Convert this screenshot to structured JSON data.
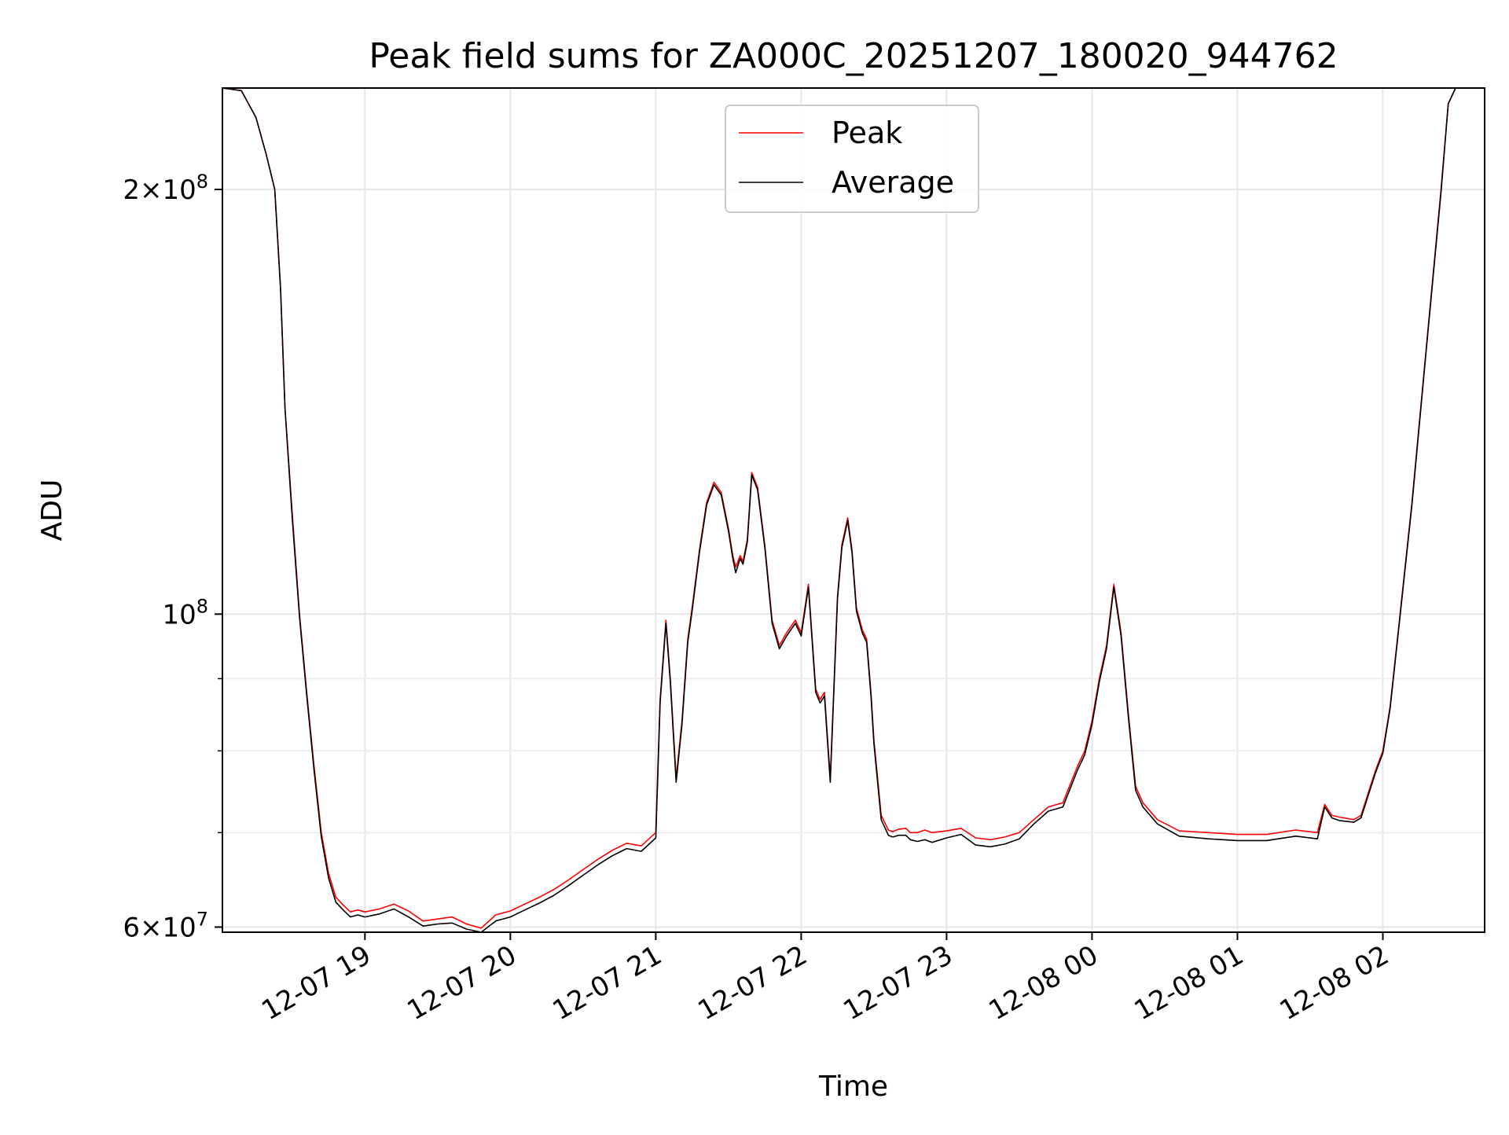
{
  "chart_data": {
    "type": "line",
    "title": "Peak field sums for ZA000C_20251207_180020_944762",
    "xlabel": "Time",
    "ylabel": "ADU",
    "yscale": "log",
    "xlim": [
      -0.98,
      7.7
    ],
    "ylim": [
      59500000,
      236000000
    ],
    "grid": true,
    "legend_position": "upper-center",
    "x_units": "hours after 12-07 19:00",
    "xticks": [
      {
        "value": 0,
        "label": "12-07 19"
      },
      {
        "value": 1,
        "label": "12-07 20"
      },
      {
        "value": 2,
        "label": "12-07 21"
      },
      {
        "value": 3,
        "label": "12-07 22"
      },
      {
        "value": 4,
        "label": "12-07 23"
      },
      {
        "value": 5,
        "label": "12-08 00"
      },
      {
        "value": 6,
        "label": "12-08 01"
      },
      {
        "value": 7,
        "label": "12-08 02"
      }
    ],
    "yticks_major": [
      {
        "value": 60000000,
        "label_base": "6×10",
        "label_exp": "7"
      },
      {
        "value": 100000000,
        "label_base": "10",
        "label_exp": "8"
      },
      {
        "value": 200000000,
        "label_base": "2×10",
        "label_exp": "8"
      }
    ],
    "yticks_minor": [
      70000000,
      80000000,
      90000000
    ],
    "series": [
      {
        "name": "Peak",
        "color": "#ff0000",
        "x": [
          -0.98,
          -0.85,
          -0.75,
          -0.68,
          -0.62,
          -0.58,
          -0.55,
          -0.5,
          -0.45,
          -0.4,
          -0.35,
          -0.3,
          -0.25,
          -0.2,
          -0.15,
          -0.1,
          -0.05,
          0.0,
          0.1,
          0.2,
          0.3,
          0.4,
          0.5,
          0.6,
          0.7,
          0.8,
          0.9,
          1.0,
          1.1,
          1.2,
          1.3,
          1.4,
          1.5,
          1.6,
          1.7,
          1.8,
          1.9,
          2.0,
          2.03,
          2.07,
          2.1,
          2.14,
          2.18,
          2.22,
          2.25,
          2.3,
          2.35,
          2.4,
          2.45,
          2.5,
          2.53,
          2.55,
          2.58,
          2.6,
          2.63,
          2.66,
          2.7,
          2.75,
          2.8,
          2.85,
          2.9,
          2.93,
          2.96,
          3.0,
          3.05,
          3.1,
          3.13,
          3.16,
          3.2,
          3.25,
          3.28,
          3.32,
          3.35,
          3.38,
          3.42,
          3.45,
          3.48,
          3.5,
          3.55,
          3.6,
          3.63,
          3.67,
          3.72,
          3.75,
          3.8,
          3.85,
          3.9,
          4.0,
          4.1,
          4.2,
          4.3,
          4.4,
          4.5,
          4.6,
          4.7,
          4.8,
          4.9,
          4.95,
          5.0,
          5.05,
          5.1,
          5.15,
          5.2,
          5.25,
          5.3,
          5.35,
          5.45,
          5.6,
          5.8,
          6.0,
          6.2,
          6.4,
          6.55,
          6.6,
          6.65,
          6.7,
          6.8,
          6.85,
          6.95,
          7.0,
          7.05,
          7.1,
          7.2,
          7.3,
          7.4,
          7.45,
          7.5,
          7.6,
          7.7
        ],
        "values": [
          236000000,
          235000000,
          225000000,
          212000000,
          200000000,
          170000000,
          140000000,
          118000000,
          100000000,
          88000000,
          78000000,
          70000000,
          65500000,
          63000000,
          62200000,
          61500000,
          61700000,
          61500000,
          61800000,
          62300000,
          61600000,
          60600000,
          60800000,
          61000000,
          60300000,
          59900000,
          61200000,
          61600000,
          62300000,
          63000000,
          63800000,
          64800000,
          65900000,
          67000000,
          68000000,
          68800000,
          68500000,
          70000000,
          87000000,
          99000000,
          90000000,
          76500000,
          84000000,
          96000000,
          101000000,
          111000000,
          120000000,
          124000000,
          122000000,
          115000000,
          110000000,
          108000000,
          110000000,
          109000000,
          113000000,
          126000000,
          123000000,
          112000000,
          99000000,
          95000000,
          97000000,
          98000000,
          99000000,
          97000000,
          105000000,
          88500000,
          87000000,
          88000000,
          76500000,
          103000000,
          112000000,
          117000000,
          111000000,
          101000000,
          97500000,
          96000000,
          88000000,
          81500000,
          72000000,
          70300000,
          70100000,
          70400000,
          70500000,
          70000000,
          70000000,
          70300000,
          70000000,
          70200000,
          70500000,
          69400000,
          69200000,
          69500000,
          70000000,
          71500000,
          73000000,
          73500000,
          78000000,
          80000000,
          84000000,
          90000000,
          95000000,
          105000000,
          97000000,
          85000000,
          75500000,
          73500000,
          71500000,
          70200000,
          70000000,
          69800000,
          69800000,
          70300000,
          70000000,
          73300000,
          72000000,
          71800000,
          71500000,
          72000000,
          77500000,
          80000000,
          86000000,
          96000000,
          120000000,
          155000000,
          200000000,
          230000000,
          236000000,
          236000000,
          236000000
        ]
      },
      {
        "name": "Average",
        "color": "#000000",
        "x": [
          -0.98,
          -0.85,
          -0.75,
          -0.68,
          -0.62,
          -0.58,
          -0.55,
          -0.5,
          -0.45,
          -0.4,
          -0.35,
          -0.3,
          -0.25,
          -0.2,
          -0.15,
          -0.1,
          -0.05,
          0.0,
          0.1,
          0.2,
          0.3,
          0.4,
          0.5,
          0.6,
          0.7,
          0.8,
          0.9,
          1.0,
          1.1,
          1.2,
          1.3,
          1.4,
          1.5,
          1.6,
          1.7,
          1.8,
          1.9,
          2.0,
          2.03,
          2.07,
          2.1,
          2.14,
          2.18,
          2.22,
          2.25,
          2.3,
          2.35,
          2.4,
          2.45,
          2.5,
          2.53,
          2.55,
          2.58,
          2.6,
          2.63,
          2.66,
          2.7,
          2.75,
          2.8,
          2.85,
          2.9,
          2.93,
          2.96,
          3.0,
          3.05,
          3.1,
          3.13,
          3.16,
          3.2,
          3.25,
          3.28,
          3.32,
          3.35,
          3.38,
          3.42,
          3.45,
          3.48,
          3.5,
          3.55,
          3.6,
          3.63,
          3.67,
          3.72,
          3.75,
          3.8,
          3.85,
          3.9,
          4.0,
          4.1,
          4.2,
          4.3,
          4.4,
          4.5,
          4.6,
          4.7,
          4.8,
          4.9,
          4.95,
          5.0,
          5.05,
          5.1,
          5.15,
          5.2,
          5.25,
          5.3,
          5.35,
          5.45,
          5.6,
          5.8,
          6.0,
          6.2,
          6.4,
          6.55,
          6.6,
          6.65,
          6.7,
          6.8,
          6.85,
          6.95,
          7.0,
          7.05,
          7.1,
          7.2,
          7.3,
          7.4,
          7.45,
          7.5,
          7.6,
          7.7
        ],
        "values": [
          236000000,
          235000000,
          225000000,
          212000000,
          200000000,
          170000000,
          140000000,
          117000000,
          99500000,
          87500000,
          77500000,
          69500000,
          65000000,
          62500000,
          61700000,
          61000000,
          61200000,
          61000000,
          61300000,
          61800000,
          61000000,
          60100000,
          60300000,
          60400000,
          59800000,
          59500000,
          60600000,
          61000000,
          61700000,
          62400000,
          63200000,
          64200000,
          65300000,
          66400000,
          67400000,
          68200000,
          67900000,
          69400000,
          86500000,
          98500000,
          89500000,
          76000000,
          83500000,
          95500000,
          100500000,
          110500000,
          119500000,
          123500000,
          121500000,
          114500000,
          109500000,
          107000000,
          109500000,
          108500000,
          112500000,
          125500000,
          122500000,
          111500000,
          98500000,
          94500000,
          96500000,
          97500000,
          98500000,
          96500000,
          104500000,
          88000000,
          86500000,
          87500000,
          76000000,
          102500000,
          111500000,
          116500000,
          110500000,
          100500000,
          97000000,
          95500000,
          87500000,
          81000000,
          71500000,
          69700000,
          69500000,
          69700000,
          69700000,
          69200000,
          69000000,
          69200000,
          68900000,
          69400000,
          69800000,
          68600000,
          68400000,
          68700000,
          69300000,
          71000000,
          72500000,
          73000000,
          77500000,
          79500000,
          83500000,
          89500000,
          94500000,
          104500000,
          96500000,
          84500000,
          75000000,
          73000000,
          71000000,
          69600000,
          69300000,
          69100000,
          69100000,
          69600000,
          69300000,
          73000000,
          71700000,
          71400000,
          71200000,
          71700000,
          77200000,
          79700000,
          85700000,
          95700000,
          119500000,
          154500000,
          199000000,
          230000000,
          236000000,
          236000000,
          236000000
        ]
      }
    ]
  }
}
